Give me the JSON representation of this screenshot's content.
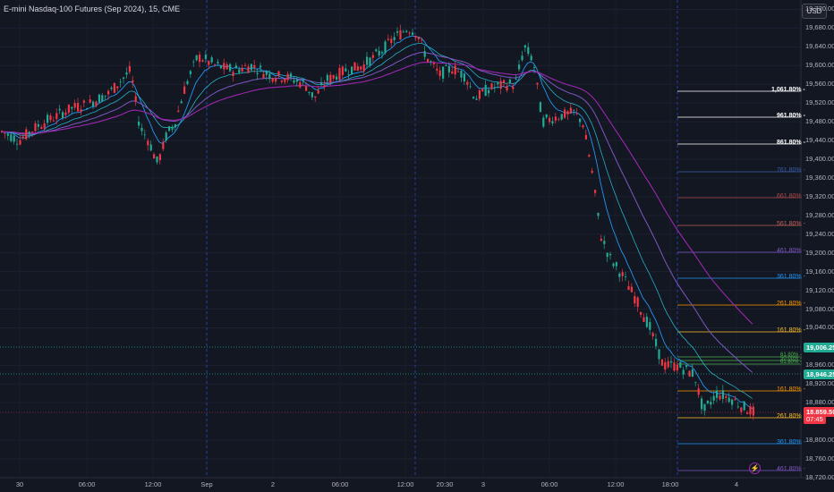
{
  "header": {
    "title": "E-mini Nasdaq-100 Futures (Sep 2024), 15, CME"
  },
  "currency_button": {
    "label": "USD"
  },
  "price_axis": {
    "ticks": [
      "19,720.00",
      "19,680.00",
      "19,640.00",
      "19,600.00",
      "19,560.00",
      "19,520.00",
      "19,480.00",
      "19,440.00",
      "19,400.00",
      "19,360.00",
      "19,320.00",
      "19,280.00",
      "19,240.00",
      "19,200.00",
      "19,160.00",
      "19,120.00",
      "19,080.00",
      "19,040.00",
      "18,960.00",
      "18,920.00",
      "18,880.00",
      "18,800.00",
      "18,760.00",
      "18,720.00"
    ],
    "tags": {
      "level_upper": "19,006.25",
      "level_lower": "18,946.25",
      "last_price": "18,859.50",
      "countdown": "07:45"
    }
  },
  "time_axis": {
    "ticks": [
      "30",
      "06:00",
      "12:00",
      "Sep",
      "06:00",
      "12:00",
      "20:30",
      "2",
      "3",
      "06:00",
      "12:00",
      "18:00",
      "4"
    ]
  },
  "fib_upper": [
    "1,061.80%",
    "961.80%",
    "861.80%",
    "761.80%",
    "661.80%",
    "561.80%",
    "461.80%",
    "361.80%",
    "261.80%",
    "161.80%"
  ],
  "fib_mid": [
    "61.80%",
    "50.00%",
    "61.80%"
  ],
  "fib_lower": [
    "161.80%",
    "261.80%",
    "361.80%",
    "461.80%"
  ],
  "colors": {
    "background": "#131722",
    "up": "#22ab94",
    "down": "#f23645",
    "grid": "#1e2230"
  },
  "chart_data": {
    "type": "candlestick",
    "symbol": "E-mini Nasdaq-100 Futures (Sep 2024)",
    "interval": "15",
    "exchange": "CME",
    "ylim": [
      18720,
      19740
    ],
    "horizontal_levels": [
      19006.25,
      18946.25
    ],
    "last_price": 18859.5,
    "price_path": [
      [
        0,
        19460
      ],
      [
        20,
        19440
      ],
      [
        40,
        19470
      ],
      [
        60,
        19490
      ],
      [
        80,
        19510
      ],
      [
        100,
        19520
      ],
      [
        120,
        19540
      ],
      [
        145,
        19590
      ],
      [
        155,
        19470
      ],
      [
        165,
        19440
      ],
      [
        175,
        19390
      ],
      [
        185,
        19450
      ],
      [
        195,
        19480
      ],
      [
        205,
        19550
      ],
      [
        220,
        19620
      ],
      [
        240,
        19600
      ],
      [
        260,
        19590
      ],
      [
        280,
        19600
      ],
      [
        300,
        19580
      ],
      [
        320,
        19575
      ],
      [
        340,
        19560
      ],
      [
        350,
        19530
      ],
      [
        365,
        19570
      ],
      [
        385,
        19590
      ],
      [
        405,
        19600
      ],
      [
        425,
        19630
      ],
      [
        440,
        19660
      ],
      [
        455,
        19680
      ],
      [
        465,
        19670
      ],
      [
        475,
        19620
      ],
      [
        490,
        19580
      ],
      [
        505,
        19595
      ],
      [
        520,
        19575
      ],
      [
        530,
        19530
      ],
      [
        545,
        19550
      ],
      [
        565,
        19560
      ],
      [
        575,
        19560
      ],
      [
        585,
        19640
      ],
      [
        595,
        19610
      ],
      [
        605,
        19480
      ],
      [
        620,
        19490
      ],
      [
        640,
        19500
      ],
      [
        650,
        19480
      ],
      [
        660,
        19380
      ],
      [
        670,
        19240
      ],
      [
        680,
        19190
      ],
      [
        695,
        19150
      ],
      [
        710,
        19100
      ],
      [
        725,
        19040
      ],
      [
        740,
        18960
      ],
      [
        755,
        18960
      ],
      [
        775,
        18940
      ],
      [
        785,
        18860
      ],
      [
        800,
        18900
      ],
      [
        815,
        18890
      ],
      [
        830,
        18870
      ],
      [
        842,
        18860
      ]
    ]
  }
}
